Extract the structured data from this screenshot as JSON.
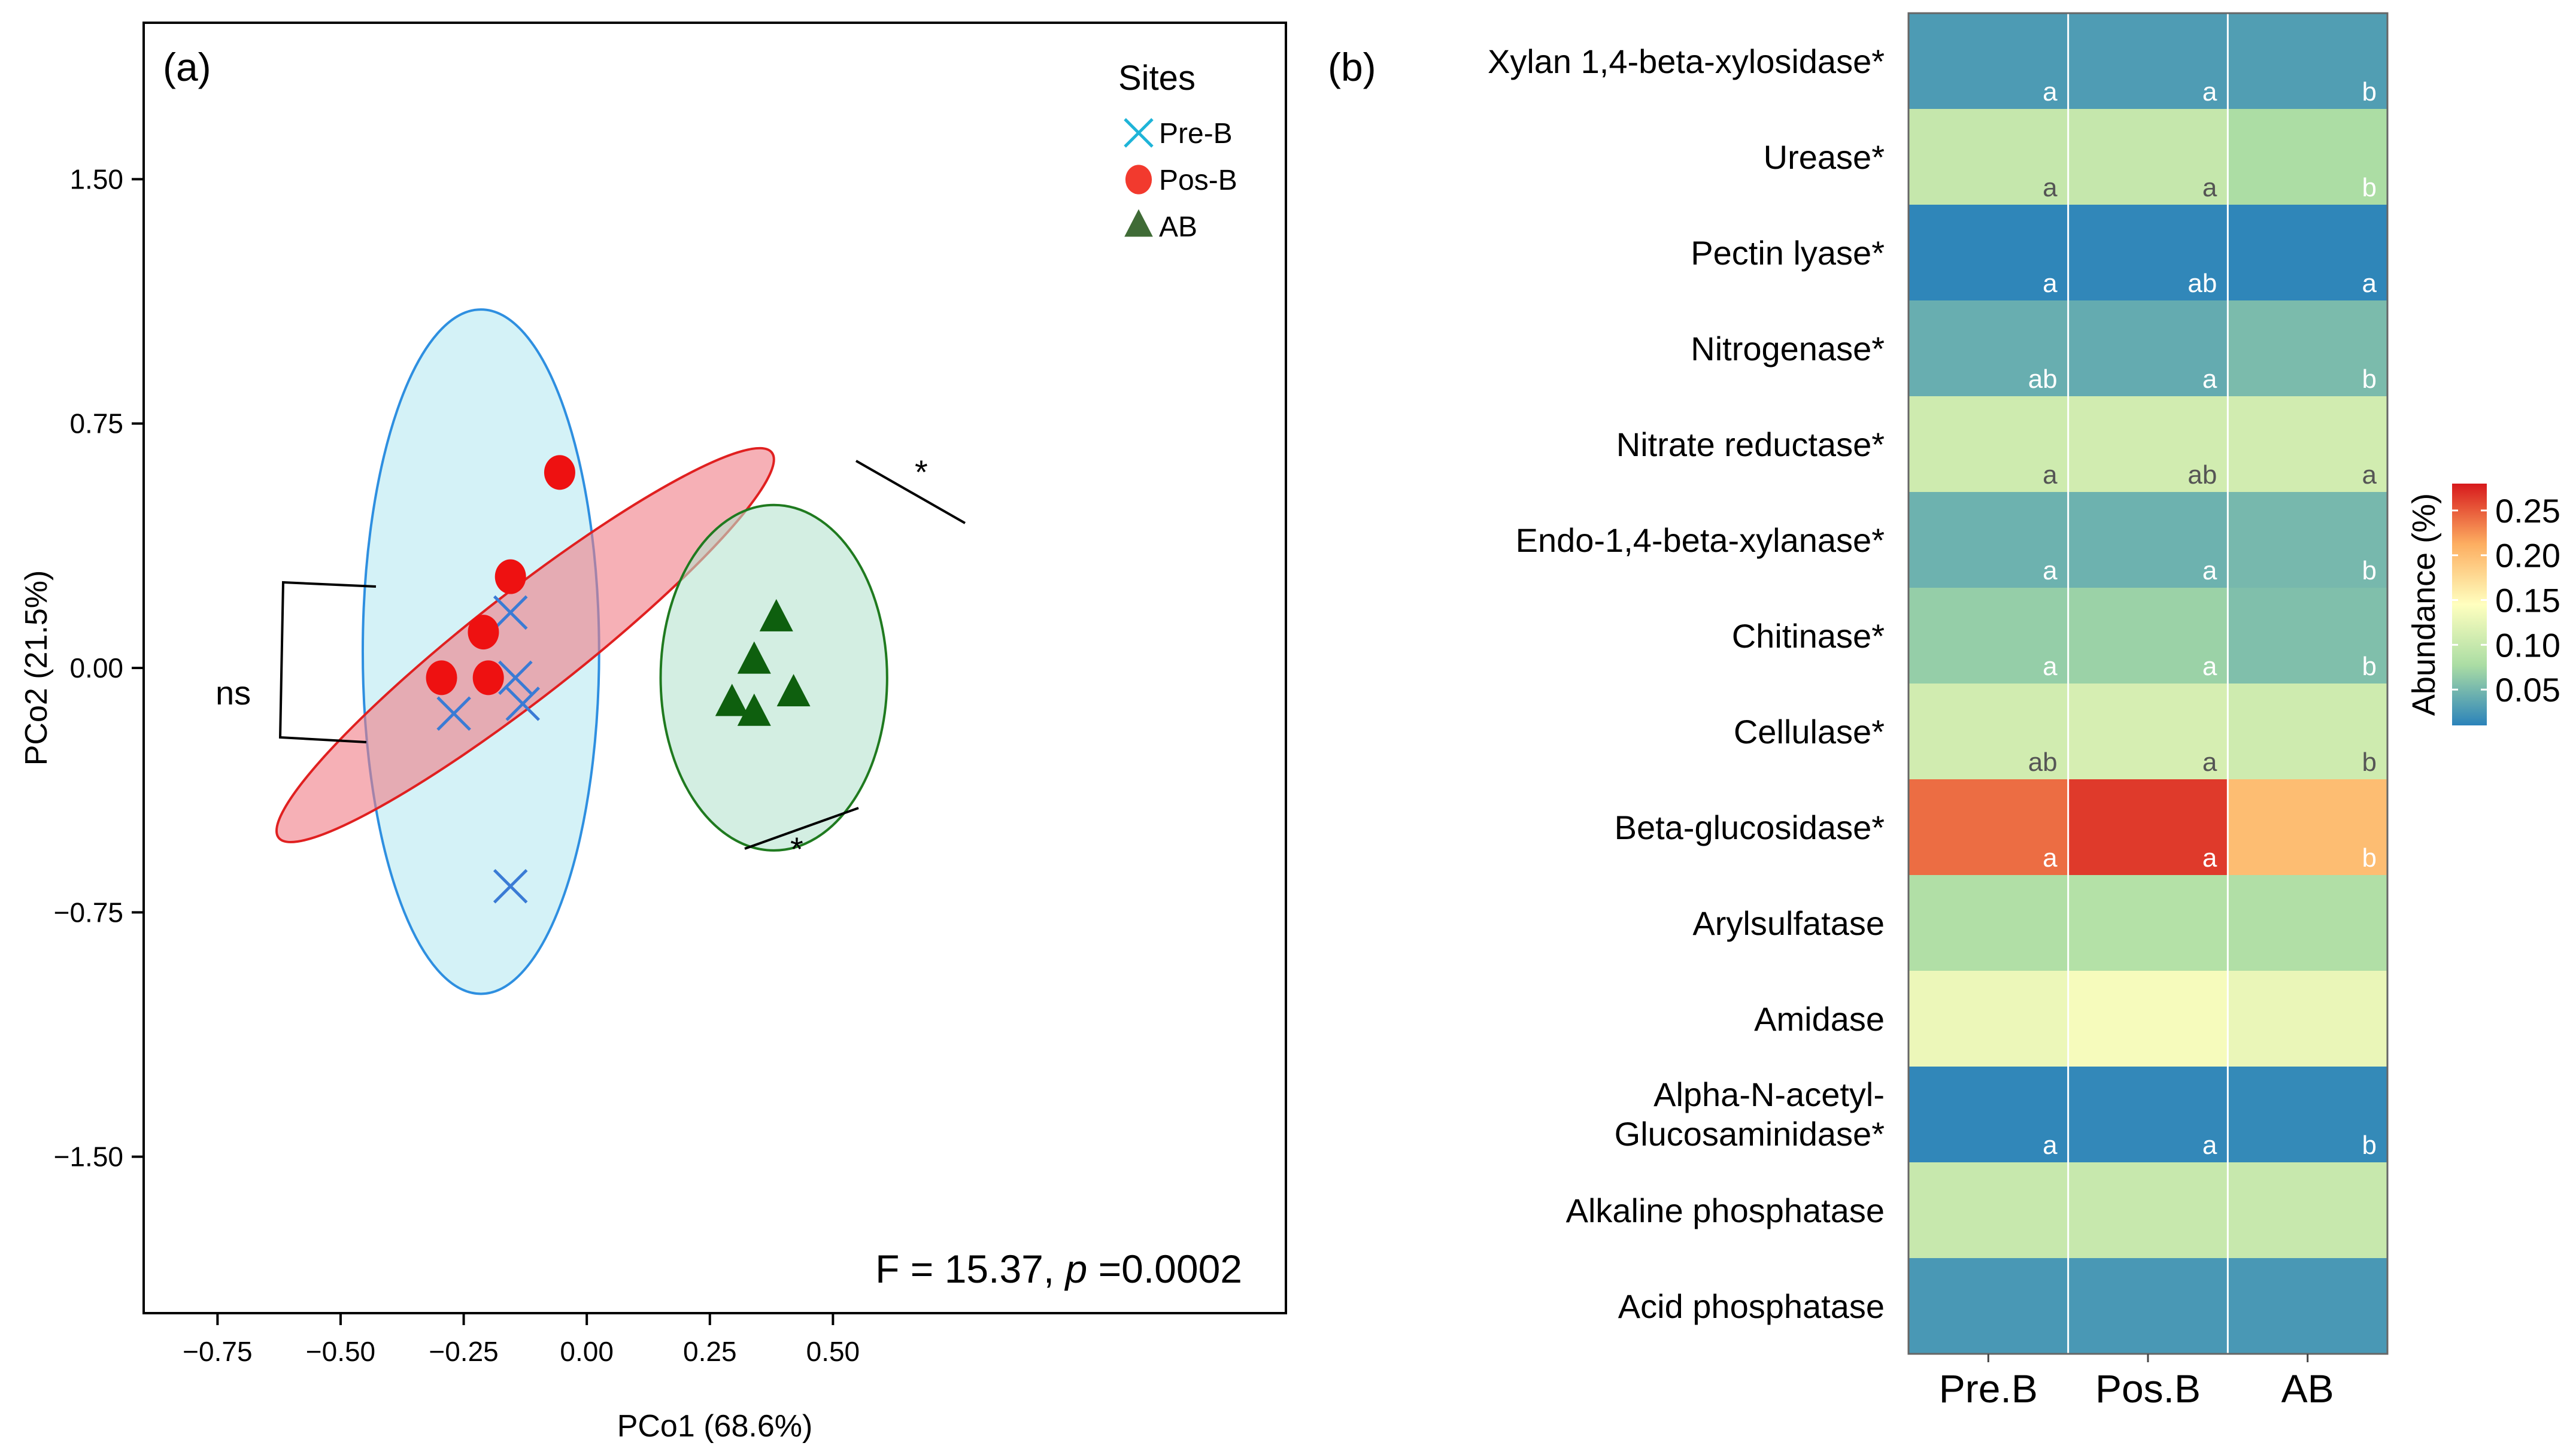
{
  "chart_data": [
    {
      "type": "scatter",
      "panel_label": "(a)",
      "xlabel": "PCo1 (68.6%)",
      "ylabel": "PCo2 (21.5%)",
      "xlim": [
        -0.9,
        1.42
      ],
      "ylim": [
        -1.98,
        1.98
      ],
      "x_ticks": [
        -0.75,
        -0.5,
        -0.25,
        0.0,
        0.25,
        0.5
      ],
      "x_tick_labels": [
        "−0.75",
        "−0.50",
        "−0.25",
        "0.00",
        "0.25",
        "0.50"
      ],
      "y_ticks": [
        -1.5,
        -0.75,
        0.0,
        0.75,
        1.5
      ],
      "y_tick_labels": [
        "−1.50",
        "−0.75",
        "0.00",
        "0.75",
        "1.50"
      ],
      "legend_title": "Sites",
      "legend_position": "top-right",
      "grid": false,
      "series": [
        {
          "name": "Pre-B",
          "marker": "cross",
          "color": "#3A7BD5",
          "points": [
            [
              -0.27,
              -0.14
            ],
            [
              -0.155,
              0.17
            ],
            [
              -0.145,
              -0.03
            ],
            [
              -0.13,
              -0.11
            ],
            [
              -0.155,
              -0.67
            ]
          ]
        },
        {
          "name": "Pos-B",
          "marker": "circle",
          "color": "#EE1111",
          "points": [
            [
              -0.295,
              -0.03
            ],
            [
              -0.21,
              0.11
            ],
            [
              -0.2,
              -0.03
            ],
            [
              -0.155,
              0.28
            ],
            [
              -0.055,
              0.6
            ]
          ]
        },
        {
          "name": "AB",
          "marker": "triangle",
          "color": "#0E5F0E",
          "points": [
            [
              0.295,
              -0.11
            ],
            [
              0.34,
              0.02
            ],
            [
              0.34,
              -0.14
            ],
            [
              0.385,
              0.15
            ],
            [
              0.42,
              -0.08
            ]
          ]
        }
      ],
      "ellipses": [
        {
          "series": "Pre-B",
          "cx": -0.215,
          "cy": 0.05,
          "rx": 0.24,
          "ry": 1.05,
          "angle": 0,
          "fill": "#B8EAF2",
          "stroke": "#2E8FE0"
        },
        {
          "series": "Pos-B",
          "cx": -0.125,
          "cy": 0.07,
          "rx": 1.6,
          "ry": 0.16,
          "angle": 38,
          "fill": "#F07C86",
          "stroke": "#E02020"
        },
        {
          "series": "AB",
          "cx": 0.38,
          "cy": -0.03,
          "rx": 0.23,
          "ry": 0.53,
          "angle": 0,
          "fill": "#B6E3CF",
          "stroke": "#1F7A1F"
        }
      ],
      "annotations": [
        {
          "text": "ns",
          "between": [
            "Pre-B",
            "Pos-B"
          ]
        },
        {
          "text": "*",
          "between": [
            "Pos-B",
            "AB"
          ]
        },
        {
          "text": "*",
          "between": [
            "Pre-B",
            "AB"
          ]
        }
      ],
      "stat_prefix": "F = 15.37, ",
      "stat_p_symbol": "p",
      "stat_p_value": " =0.0002"
    },
    {
      "type": "heatmap",
      "panel_label": "(b)",
      "columns": [
        "Pre.B",
        "Pos.B",
        "AB"
      ],
      "rows": [
        {
          "label": "Xylan 1,4-beta-xylosidase*",
          "values": [
            0.028,
            0.029,
            0.03
          ],
          "letters": [
            "a",
            "a",
            "b"
          ]
        },
        {
          "label": "Urease*",
          "values": [
            0.098,
            0.098,
            0.078
          ],
          "letters": [
            "a",
            "a",
            "b"
          ]
        },
        {
          "label": "Pectin lyase*",
          "values": [
            0.012,
            0.013,
            0.012
          ],
          "letters": [
            "a",
            "ab",
            "a"
          ]
        },
        {
          "label": "Nitrogenase*",
          "values": [
            0.042,
            0.04,
            0.052
          ],
          "letters": [
            "ab",
            "a",
            "b"
          ]
        },
        {
          "label": "Nitrate reductase*",
          "values": [
            0.106,
            0.108,
            0.108
          ],
          "letters": [
            "a",
            "ab",
            "a"
          ]
        },
        {
          "label": "Endo-1,4-beta-xylanase*",
          "values": [
            0.045,
            0.045,
            0.05
          ],
          "letters": [
            "a",
            "a",
            "b"
          ]
        },
        {
          "label": "Chitinase*",
          "values": [
            0.066,
            0.069,
            0.055
          ],
          "letters": [
            "a",
            "a",
            "b"
          ]
        },
        {
          "label": "Cellulase*",
          "values": [
            0.108,
            0.112,
            0.106
          ],
          "letters": [
            "ab",
            "a",
            "b"
          ]
        },
        {
          "label": "Beta-glucosidase*",
          "values": [
            0.242,
            0.265,
            0.2
          ],
          "letters": [
            "a",
            "a",
            "b"
          ]
        },
        {
          "label": "Arylsulfatase",
          "values": [
            0.082,
            0.085,
            0.082
          ],
          "letters": [
            "",
            "",
            ""
          ]
        },
        {
          "label": "Amidase",
          "values": [
            0.13,
            0.138,
            0.128
          ],
          "letters": [
            "",
            "",
            ""
          ]
        },
        {
          "label": "Alpha-N-acetyl- Glucosaminidase*",
          "label_lines": [
            "Alpha-N-acetyl-",
            "Glucosaminidase*"
          ],
          "values": [
            0.013,
            0.014,
            0.015
          ],
          "letters": [
            "a",
            "a",
            "b"
          ]
        },
        {
          "label": "Alkaline phosphatase",
          "values": [
            0.1,
            0.1,
            0.1
          ],
          "letters": [
            "",
            "",
            ""
          ]
        },
        {
          "label": "Acid phosphatase",
          "values": [
            0.026,
            0.026,
            0.026
          ],
          "letters": [
            "",
            "",
            ""
          ]
        }
      ],
      "colorbar": {
        "title": "Abundance (%)",
        "range": [
          0.01,
          0.28
        ],
        "ticks": [
          0.05,
          0.1,
          0.15,
          0.2,
          0.25
        ],
        "tick_labels": [
          "0.05",
          "0.10",
          "0.15",
          "0.20",
          "0.25"
        ],
        "colors": [
          "#2B83BA",
          "#ABDDA4",
          "#FFFFBF",
          "#FDAE61",
          "#D7191C"
        ],
        "position": "right"
      }
    }
  ]
}
